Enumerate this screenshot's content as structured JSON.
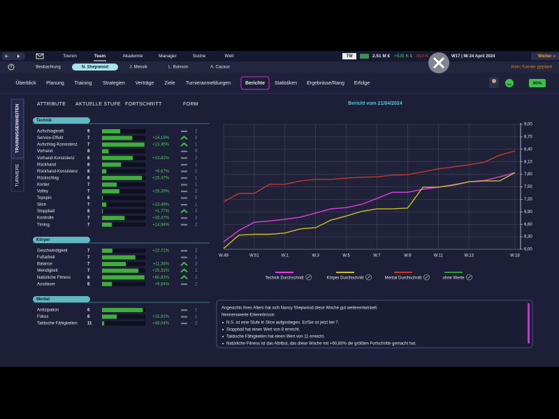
{
  "nav": {
    "menu": [
      "Touren",
      "Team",
      "Akademie",
      "Manager",
      "Suche",
      "Welt"
    ],
    "active": 1,
    "balance": "2.51 M €",
    "income": "+535 K €",
    "expense": "-410 K",
    "date": "W17 | Mi 24 April 2024",
    "next": "Weiter »"
  },
  "players": {
    "tabs": [
      "Beobachtung",
      "N. Shepwood",
      "J. Mensik",
      "L. Boisson",
      "A. Cazaux"
    ],
    "active": 1,
    "status": "Kein Turnier geplant"
  },
  "subnav": {
    "tabs": [
      "Überblick",
      "Planung",
      "Training",
      "Strategien",
      "Verträge",
      "Ziele",
      "Turnieranmeldungen",
      "Berichte",
      "Statistiken",
      "Ergebnisse/Rang",
      "Erfolge"
    ],
    "active": 7,
    "mood": "90%"
  },
  "side_tabs": [
    "TRAININGSEINHEITEN",
    "TURNIERE"
  ],
  "table": {
    "headers": [
      "ATTRIBUTE",
      "AKTUELLE STUFE",
      "FORTSCHRITT",
      "FORM"
    ],
    "sections": [
      {
        "name": "Technik",
        "rows": [
          {
            "attribute": "Aufschlagkraft",
            "level": 9,
            "bar": 42,
            "progress": null,
            "trend": "flat",
            "form": 2
          },
          {
            "attribute": "Service-Effekt",
            "level": 7,
            "bar": 70,
            "progress": "+14,19%",
            "trend": "up",
            "form": 2
          },
          {
            "attribute": "Aufschlag-Konsistenz",
            "level": 7,
            "bar": 98,
            "progress": "+13,45%",
            "trend": "up",
            "form": 1
          },
          {
            "attribute": "Vorhand",
            "level": 8,
            "bar": 15,
            "progress": null,
            "trend": "flat",
            "form": 0
          },
          {
            "attribute": "Vorhand-Konsistenz",
            "level": 8,
            "bar": 71,
            "progress": "+13,82%",
            "trend": "flat",
            "form": 2
          },
          {
            "attribute": "Rückhand",
            "level": 8,
            "bar": 44,
            "progress": null,
            "trend": "flat",
            "form": 1
          },
          {
            "attribute": "Rückhand-Konsistenz",
            "level": 8,
            "bar": 10,
            "progress": "+9,67%",
            "trend": "flat",
            "form": 2
          },
          {
            "attribute": "Rückschlag",
            "level": 6,
            "bar": 92,
            "progress": "+15,47%",
            "trend": "flat",
            "form": 1
          },
          {
            "attribute": "Konter",
            "level": 7,
            "bar": 34,
            "progress": null,
            "trend": "flat",
            "form": 1
          },
          {
            "attribute": "Volley",
            "level": 7,
            "bar": 40,
            "progress": "+28,39%",
            "trend": "flat",
            "form": 2
          },
          {
            "attribute": "Topspin",
            "level": 8,
            "bar": 2,
            "progress": null,
            "trend": "flat",
            "form": 0
          },
          {
            "attribute": "Slice",
            "level": 7,
            "bar": 10,
            "progress": "+13,48%",
            "trend": "flat",
            "form": 1
          },
          {
            "attribute": "Stoppball",
            "level": 8,
            "bar": 2,
            "progress": "+1,77%",
            "trend": "up",
            "form": 2
          },
          {
            "attribute": "Kontrolle",
            "level": 7,
            "bar": 52,
            "progress": "+33,47%",
            "trend": "flat",
            "form": 2
          },
          {
            "attribute": "Timing",
            "level": 7,
            "bar": 23,
            "progress": "+14,94%",
            "trend": "flat",
            "form": 2
          }
        ]
      },
      {
        "name": "Körper",
        "rows": [
          {
            "attribute": "Geschwindigkeit",
            "level": 7,
            "bar": 24,
            "progress": "+22,71%",
            "trend": "flat",
            "form": 2
          },
          {
            "attribute": "Fußarbeit",
            "level": 7,
            "bar": 77,
            "progress": null,
            "trend": "flat",
            "form": 1
          },
          {
            "attribute": "Balance",
            "level": 7,
            "bar": 55,
            "progress": "+11,36%",
            "trend": "up",
            "form": 2
          },
          {
            "attribute": "Wendigkeit",
            "level": 7,
            "bar": 84,
            "progress": "+25,31%",
            "trend": "up",
            "form": 2
          },
          {
            "attribute": "Natürliche Fitness",
            "level": 8,
            "bar": 98,
            "progress": "+60,83%",
            "trend": "up",
            "form": 2
          },
          {
            "attribute": "Ausdauer",
            "level": 8,
            "bar": 23,
            "progress": "+9,84%",
            "trend": "flat",
            "form": 2
          }
        ]
      },
      {
        "name": "Mental",
        "rows": [
          {
            "attribute": "Antizipation",
            "level": 6,
            "bar": 94,
            "progress": null,
            "trend": "flat",
            "form": 1
          },
          {
            "attribute": "Fokus",
            "level": 8,
            "bar": 34,
            "progress": "+15,91%",
            "trend": "flat",
            "form": 1
          },
          {
            "attribute": "Taktische Fähigkeiten",
            "level": 11,
            "bar": 5,
            "progress": "+48,04%",
            "trend": "flat",
            "form": 2
          }
        ]
      }
    ]
  },
  "chart_data": {
    "type": "line",
    "title": "Bericht vom 21/04/2024",
    "categories": [
      "W.49",
      null,
      "W.51",
      null,
      "W.1",
      null,
      "W.3",
      null,
      "W.5",
      null,
      "W.7",
      null,
      "W.9",
      null,
      "W.11",
      null,
      "W.13",
      null,
      null,
      "W.16"
    ],
    "series": [
      {
        "name": "Technik Durchschnitt",
        "color": "#e03ee6",
        "values": [
          6.18,
          6.45,
          6.65,
          6.68,
          6.72,
          6.77,
          6.87,
          6.97,
          7.0,
          7.08,
          7.22,
          7.37,
          7.37,
          7.44,
          7.49,
          7.55,
          7.62,
          7.65,
          7.74,
          7.84
        ]
      },
      {
        "name": "Körper Durchschnitt",
        "color": "#c9bf2c",
        "values": [
          6.02,
          6.34,
          6.36,
          6.36,
          6.39,
          6.49,
          6.52,
          6.7,
          6.8,
          6.91,
          6.97,
          6.97,
          6.99,
          7.49,
          7.49,
          7.54,
          7.62,
          7.64,
          7.64,
          7.84
        ]
      },
      {
        "name": "Mental Durchschnitt",
        "color": "#c43a2e",
        "values": [
          7.14,
          7.34,
          7.34,
          7.56,
          7.56,
          7.64,
          7.68,
          7.68,
          7.71,
          7.73,
          7.74,
          7.78,
          7.79,
          7.86,
          7.93,
          7.98,
          8.03,
          8.09,
          8.26,
          8.36
        ]
      },
      {
        "name": "ohne Werte",
        "color": "#2e9a36",
        "values": [
          null,
          null,
          null,
          null,
          null,
          null,
          null,
          null,
          null,
          null,
          null,
          null,
          null,
          null,
          null,
          null,
          null,
          null,
          null,
          null
        ]
      }
    ],
    "ylim": [
      6,
      9
    ],
    "yticks": [
      {
        "value": 6.0,
        "label": "6,00"
      },
      {
        "value": 6.3,
        "label": "6,30"
      },
      {
        "value": 6.6,
        "label": "6,60"
      },
      {
        "value": 6.9,
        "label": "6,90"
      },
      {
        "value": 7.2,
        "label": "7,20"
      },
      {
        "value": 7.5,
        "label": "7,50"
      },
      {
        "value": 7.8,
        "label": "7,80"
      },
      {
        "value": 8.1,
        "label": "8,10"
      },
      {
        "value": 8.4,
        "label": "8,40"
      },
      {
        "value": 8.7,
        "label": "8,70"
      },
      {
        "value": 9.0,
        "label": "9,00"
      }
    ],
    "grid": true
  },
  "report": {
    "intro": "Angesichts ihres Alters hat sich Nancy Shepwood diese Woche gut weiterentwickelt.",
    "heading": "Nennenswerte Erkenntnisse:",
    "bullets": [
      "N.S. ist eine Stufe in Slice aufgestiegen. Er/Sie ist jetzt bei 7.",
      "Stoppball hat einen Wert von 8 erreicht.",
      "Taktische Fähigkeiten hat einen Wert von 11 erreicht.",
      "Natürliche Fitness ist das Attribut, das diese Woche mit +60,83% die größten Fortschritte gemacht hat."
    ]
  }
}
